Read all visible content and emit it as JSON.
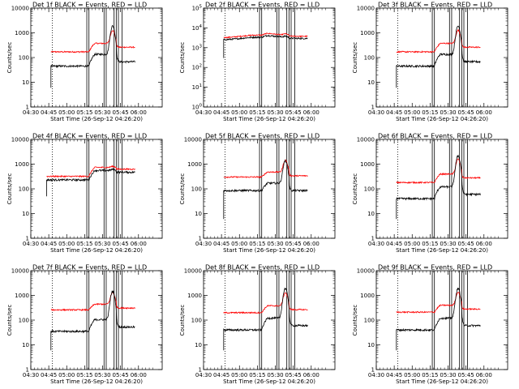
{
  "chart_data": {
    "type": "line",
    "layout": "3x3 grid",
    "x_tick_labels": [
      "04:30",
      "04:45",
      "05:00",
      "05:15",
      "05:30",
      "05:45",
      "06:00"
    ],
    "x_range_hours": [
      4.5,
      6.33
    ],
    "xlabel": "Start Time (26-Sep-12 04:26:20)",
    "ylabel": "Counts/sec",
    "y_scale": "log",
    "dotted_vertical_line_x": 4.8,
    "vertical_markers_x": [
      5.28,
      5.31,
      5.52,
      5.55,
      5.66,
      5.69,
      5.72,
      5.77
    ],
    "colors": {
      "events": "#000000",
      "lld": "#ff0000"
    },
    "panels": [
      {
        "title": "Det 1f BLACK = Events, RED = LLD",
        "ylim": [
          1,
          10000
        ],
        "y_tick_labels": [
          "1",
          "10",
          "100",
          "1000",
          "10000"
        ],
        "events": {
          "start": 4.78,
          "base": 45,
          "rise": 3,
          "peak": 14,
          "gap_drop": 0.5
        },
        "lld": {
          "base": 170,
          "rise": 2.2,
          "peak": 3.4,
          "gap_drop": 0.7
        }
      },
      {
        "title": "Det 2f BLACK = Events, RED = LLD",
        "ylim": [
          1,
          100000
        ],
        "y_tick_labels": [
          "10^0",
          "10^1",
          "10^2",
          "10^3",
          "10^4",
          "10^5"
        ],
        "events": {
          "start": 4.78,
          "base": 2500,
          "rise": 1.3,
          "peak": 1.1,
          "gap_drop": 0.9,
          "drop_start": 300
        },
        "lld": {
          "base": 3200,
          "rise": 1.3,
          "peak": 1.15,
          "gap_drop": 0.9
        }
      },
      {
        "title": "Det 3f BLACK = Events, RED = LLD",
        "ylim": [
          1,
          10000
        ],
        "y_tick_labels": [
          "1",
          "10",
          "100",
          "1000",
          "10000"
        ],
        "events": {
          "start": 4.78,
          "base": 45,
          "rise": 3,
          "peak": 14,
          "gap_drop": 0.5
        },
        "lld": {
          "base": 170,
          "rise": 2.2,
          "peak": 3.4,
          "gap_drop": 0.7
        }
      },
      {
        "title": "Det 4f BLACK = Events, RED = LLD",
        "ylim": [
          1,
          10000
        ],
        "y_tick_labels": [
          "1",
          "10",
          "100",
          "1000",
          "10000"
        ],
        "events": {
          "start": 4.72,
          "base": 230,
          "rise": 2.4,
          "peak": 1.1,
          "gap_drop": 0.85,
          "drop_start": 50
        },
        "lld": {
          "base": 320,
          "rise": 2.3,
          "peak": 1.1,
          "gap_drop": 0.85
        }
      },
      {
        "title": "Det 5f BLACK = Events, RED = LLD",
        "ylim": [
          1,
          10000
        ],
        "y_tick_labels": [
          "1",
          "10",
          "100",
          "1000",
          "10000"
        ],
        "events": {
          "start": 4.78,
          "base": 85,
          "rise": 2,
          "peak": 8,
          "gap_drop": 0.5
        },
        "lld": {
          "base": 300,
          "rise": 1.6,
          "peak": 3,
          "gap_drop": 0.7
        }
      },
      {
        "title": "Det 6f BLACK = Events, RED = LLD",
        "ylim": [
          1,
          10000
        ],
        "y_tick_labels": [
          "1",
          "10",
          "100",
          "1000",
          "10000"
        ],
        "events": {
          "start": 4.78,
          "base": 40,
          "rise": 3,
          "peak": 18,
          "gap_drop": 0.5
        },
        "lld": {
          "base": 180,
          "rise": 2.2,
          "peak": 4,
          "gap_drop": 0.7
        }
      },
      {
        "title": "Det 7f BLACK = Events, RED = LLD",
        "ylim": [
          1,
          10000
        ],
        "y_tick_labels": [
          "1",
          "10",
          "100",
          "1000",
          "10000"
        ],
        "events": {
          "start": 4.78,
          "base": 35,
          "rise": 3,
          "peak": 14,
          "gap_drop": 0.5
        },
        "lld": {
          "base": 260,
          "rise": 1.7,
          "peak": 3,
          "gap_drop": 0.7
        }
      },
      {
        "title": "Det 8f BLACK = Events, RED = LLD",
        "ylim": [
          1,
          10000
        ],
        "y_tick_labels": [
          "1",
          "10",
          "100",
          "1000",
          "10000"
        ],
        "events": {
          "start": 4.78,
          "base": 40,
          "rise": 3,
          "peak": 16,
          "gap_drop": 0.5
        },
        "lld": {
          "base": 200,
          "rise": 1.9,
          "peak": 3.4,
          "gap_drop": 0.7
        }
      },
      {
        "title": "Det 9f BLACK = Events, RED = LLD",
        "ylim": [
          1,
          10000
        ],
        "y_tick_labels": [
          "1",
          "10",
          "100",
          "1000",
          "10000"
        ],
        "events": {
          "start": 4.78,
          "base": 40,
          "rise": 3,
          "peak": 16,
          "gap_drop": 0.5
        },
        "lld": {
          "base": 210,
          "rise": 1.9,
          "peak": 3.4,
          "gap_drop": 0.7
        }
      }
    ]
  }
}
